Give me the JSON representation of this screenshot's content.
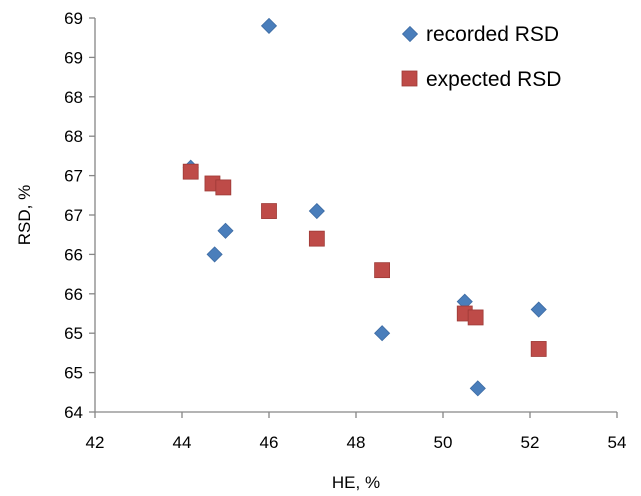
{
  "chart_data": {
    "type": "scatter",
    "title": "",
    "xlabel": "HE, %",
    "ylabel": "RSD, %",
    "xlim": [
      42,
      54
    ],
    "ylim": [
      64,
      69
    ],
    "x_ticks": [
      42,
      44,
      46,
      48,
      50,
      52,
      54
    ],
    "y_ticks": [
      64,
      64.5,
      65,
      65.5,
      66,
      66.5,
      67,
      67.5,
      68,
      68.5,
      69
    ],
    "y_tick_labels": [
      "64",
      "65",
      "65",
      "66",
      "66",
      "67",
      "67",
      "68",
      "68",
      "69",
      "69"
    ],
    "grid": false,
    "legend_position": "top-right",
    "series": [
      {
        "name": "recorded RSD",
        "marker": "diamond",
        "color": "#4a7ebb",
        "points": [
          {
            "x": 44.2,
            "y": 67.1
          },
          {
            "x": 44.75,
            "y": 66
          },
          {
            "x": 45.0,
            "y": 66.3
          },
          {
            "x": 46.0,
            "y": 68.9
          },
          {
            "x": 47.1,
            "y": 66.55
          },
          {
            "x": 48.6,
            "y": 65.0
          },
          {
            "x": 50.5,
            "y": 65.4
          },
          {
            "x": 50.8,
            "y": 64.3
          },
          {
            "x": 52.2,
            "y": 65.3
          }
        ]
      },
      {
        "name": "expected RSD",
        "marker": "square",
        "color": "#be4b48",
        "points": [
          {
            "x": 44.2,
            "y": 67.05
          },
          {
            "x": 44.7,
            "y": 66.9
          },
          {
            "x": 44.95,
            "y": 66.85
          },
          {
            "x": 46.0,
            "y": 66.55
          },
          {
            "x": 47.1,
            "y": 66.2
          },
          {
            "x": 48.6,
            "y": 65.8
          },
          {
            "x": 50.5,
            "y": 65.25
          },
          {
            "x": 50.75,
            "y": 65.2
          },
          {
            "x": 52.2,
            "y": 64.8
          }
        ]
      }
    ]
  }
}
